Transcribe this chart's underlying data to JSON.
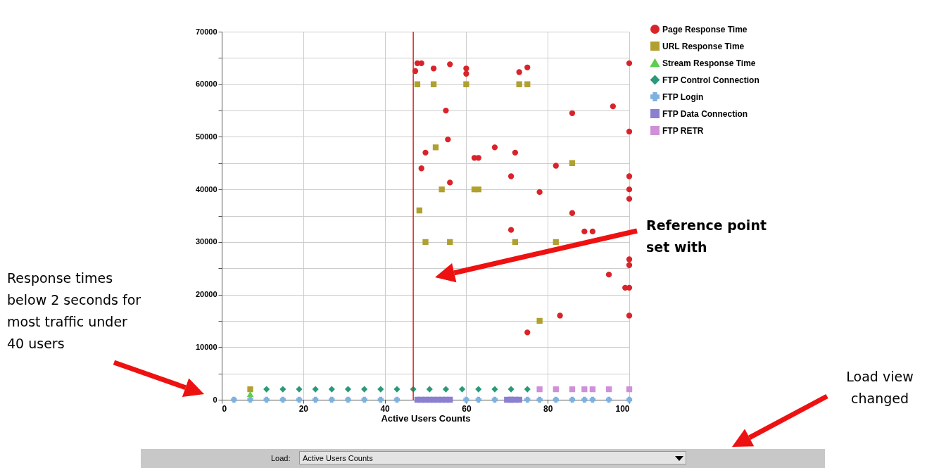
{
  "chart_data": {
    "type": "scatter",
    "xlabel": "Active Users Counts",
    "xlim": [
      0,
      100
    ],
    "xticks": [
      0,
      20,
      40,
      60,
      80,
      100
    ],
    "ylim": [
      0,
      70000
    ],
    "yticks": [
      0,
      {
        "value": 5000,
        "label": null
      },
      10000,
      {
        "value": 15000,
        "label": null
      },
      20000,
      {
        "value": 25000,
        "label": null
      },
      30000,
      {
        "value": 35000,
        "label": null
      },
      40000,
      {
        "value": 45000,
        "label": null
      },
      50000,
      {
        "value": 55000,
        "label": null
      },
      60000,
      {
        "value": 65000,
        "label": null
      },
      70000
    ],
    "grid": true,
    "legend": "top right",
    "series": [
      {
        "name": "Page Response Time",
        "color": "#d9242b",
        "marker": "circle",
        "x": [
          48,
          49,
          47.5,
          52,
          55,
          55.5,
          49,
          50,
          56,
          56,
          60,
          60,
          62,
          63,
          67,
          71,
          71,
          72,
          73,
          75,
          78,
          82,
          83,
          75,
          86,
          86,
          89,
          91,
          95,
          96,
          100,
          100,
          100,
          100,
          100,
          100,
          100,
          100,
          99,
          100
        ],
        "values": [
          64000,
          64000,
          62500,
          63000,
          55000,
          49500,
          44000,
          47000,
          41300,
          63800,
          63000,
          62000,
          46000,
          46000,
          48000,
          42500,
          32300,
          47000,
          62300,
          63200,
          39500,
          44500,
          16000,
          12800,
          54500,
          35500,
          32000,
          32000,
          23800,
          55800,
          64000,
          51000,
          42500,
          40000,
          38200,
          26700,
          25600,
          21300,
          21300,
          16000
        ]
      },
      {
        "name": "URL Response Time",
        "color": "#b0a030",
        "marker": "square",
        "x": [
          7,
          48,
          52,
          60,
          73,
          75,
          48.5,
          50,
          56,
          72,
          82,
          52.5,
          54,
          62,
          63,
          78,
          86
        ],
        "values": [
          2000,
          60000,
          60000,
          60000,
          60000,
          60000,
          36000,
          30000,
          30000,
          30000,
          30000,
          48000,
          40000,
          40000,
          40000,
          15000,
          45000
        ]
      },
      {
        "name": "Stream Response Time",
        "color": "#5bd04a",
        "marker": "triangle",
        "x": [
          7
        ],
        "values": [
          1000
        ]
      },
      {
        "name": "FTP Control Connection",
        "color": "#2a9a78",
        "marker": "diamond",
        "x": [
          11,
          15,
          19,
          23,
          27,
          31,
          35,
          39,
          43,
          47,
          51,
          55,
          59,
          63,
          67,
          71,
          75
        ],
        "values": [
          2000,
          2000,
          2000,
          2000,
          2000,
          2000,
          2000,
          2000,
          2000,
          2000,
          2000,
          2000,
          2000,
          2000,
          2000,
          2000,
          2000
        ]
      },
      {
        "name": "FTP Login",
        "color": "#7fb0e0",
        "marker": "cross",
        "x": [
          3,
          7,
          11,
          15,
          19,
          23,
          27,
          31,
          35,
          39,
          43,
          60,
          63,
          67,
          71,
          75,
          78,
          82,
          86,
          89,
          91,
          95,
          100
        ],
        "values": [
          0,
          0,
          0,
          0,
          0,
          0,
          0,
          0,
          0,
          0,
          0,
          0,
          0,
          0,
          0,
          0,
          0,
          0,
          0,
          0,
          0,
          0,
          0
        ]
      },
      {
        "name": "FTP Data Connection",
        "color": "#8a7fd0",
        "marker": "square",
        "x": [
          48,
          49,
          50,
          51,
          52,
          53,
          54,
          55,
          56,
          70,
          71,
          72,
          73
        ],
        "values": [
          0,
          0,
          0,
          0,
          0,
          0,
          0,
          0,
          0,
          0,
          0,
          0,
          0
        ]
      },
      {
        "name": "FTP RETR",
        "color": "#d090d8",
        "marker": "square",
        "x": [
          78,
          82,
          86,
          89,
          91,
          95,
          100
        ],
        "values": [
          2000,
          2000,
          2000,
          2000,
          2000,
          2000,
          2000
        ]
      }
    ],
    "ref_lines": [
      {
        "axis": "x",
        "value": 47,
        "color": "#e02020"
      }
    ],
    "annotations": [
      "Response times below 2 seconds for most traffic under 40 users",
      "Reference point set with",
      "Load view changed",
      "Load:",
      "Active Users Counts"
    ]
  }
}
